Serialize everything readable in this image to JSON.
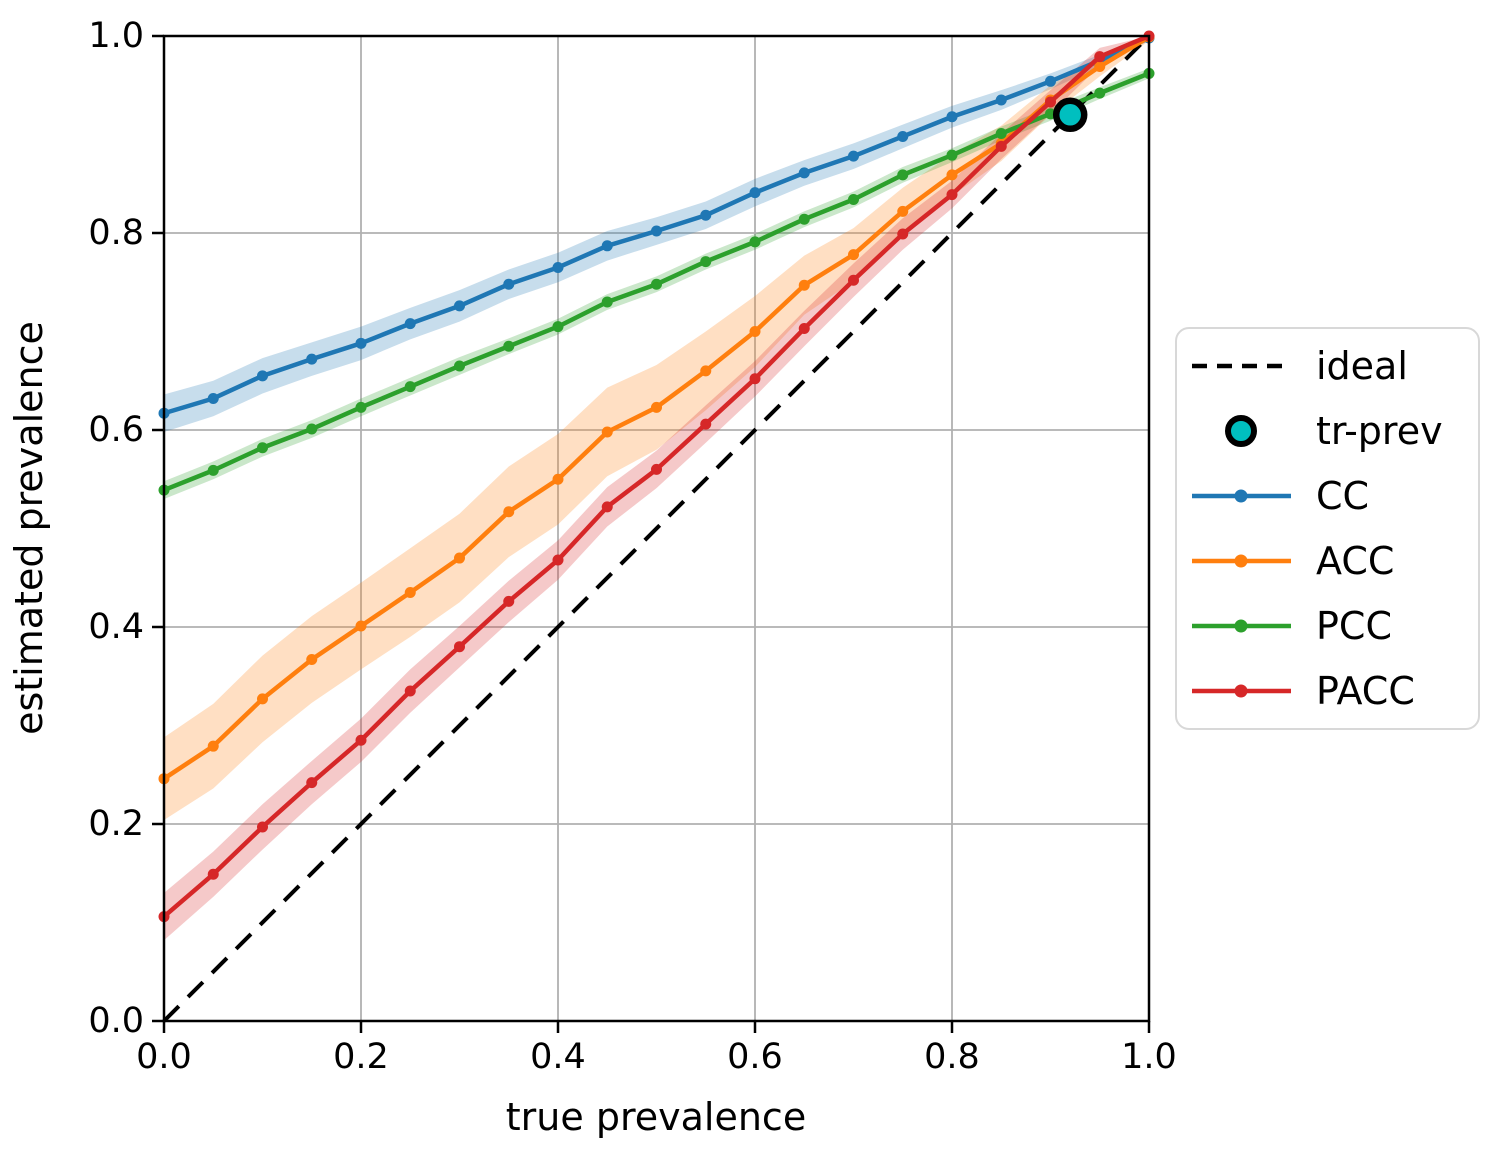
{
  "figure": {
    "xlabel": "true prevalence",
    "ylabel": "estimated prevalence",
    "x_tick_labels": [
      "0.0",
      "0.2",
      "0.4",
      "0.6",
      "0.8",
      "1.0"
    ],
    "y_tick_labels": [
      "0.0",
      "0.2",
      "0.4",
      "0.6",
      "0.8",
      "1.0"
    ]
  },
  "legend": {
    "items": [
      {
        "label": "ideal",
        "type": "dashed",
        "color": "#000000"
      },
      {
        "label": "tr-prev",
        "type": "marker",
        "color": "#00bfbf",
        "edge_color": "#000000"
      },
      {
        "label": "CC",
        "type": "line",
        "color": "#1f77b4"
      },
      {
        "label": "ACC",
        "type": "line",
        "color": "#ff7f0e"
      },
      {
        "label": "PCC",
        "type": "line",
        "color": "#2ca02c"
      },
      {
        "label": "PACC",
        "type": "line",
        "color": "#d62728"
      }
    ]
  },
  "chart_data": {
    "type": "line",
    "title": "",
    "xlabel": "true prevalence",
    "ylabel": "estimated prevalence",
    "xlim": [
      0,
      1
    ],
    "ylim": [
      0,
      1
    ],
    "grid": true,
    "grid_color": "#b0b0b0",
    "legend_position": "center right, outside axes",
    "x": [
      0.0,
      0.05,
      0.1,
      0.15,
      0.2,
      0.25,
      0.3,
      0.35,
      0.4,
      0.45,
      0.5,
      0.55,
      0.6,
      0.65,
      0.7,
      0.75,
      0.8,
      0.85,
      0.9,
      0.95,
      1.0
    ],
    "series": [
      {
        "name": "CC",
        "color": "#1f77b4",
        "values": [
          0.617,
          0.632,
          0.655,
          0.672,
          0.688,
          0.708,
          0.726,
          0.748,
          0.765,
          0.787,
          0.802,
          0.818,
          0.841,
          0.861,
          0.878,
          0.898,
          0.918,
          0.935,
          0.954,
          0.975,
          0.998
        ],
        "band_halfwidth": [
          0.019,
          0.018,
          0.018,
          0.017,
          0.017,
          0.016,
          0.016,
          0.015,
          0.015,
          0.015,
          0.014,
          0.014,
          0.014,
          0.013,
          0.013,
          0.012,
          0.011,
          0.01,
          0.008,
          0.006,
          0.003
        ]
      },
      {
        "name": "ACC",
        "color": "#ff7f0e",
        "values": [
          0.246,
          0.279,
          0.327,
          0.367,
          0.401,
          0.435,
          0.47,
          0.517,
          0.55,
          0.598,
          0.623,
          0.66,
          0.7,
          0.747,
          0.778,
          0.822,
          0.859,
          0.891,
          0.935,
          0.969,
          0.999
        ],
        "band_halfwidth": [
          0.042,
          0.043,
          0.044,
          0.044,
          0.044,
          0.045,
          0.045,
          0.046,
          0.046,
          0.045,
          0.043,
          0.04,
          0.036,
          0.03,
          0.027,
          0.024,
          0.021,
          0.018,
          0.015,
          0.01,
          0.004
        ]
      },
      {
        "name": "PCC",
        "color": "#2ca02c",
        "values": [
          0.539,
          0.559,
          0.582,
          0.601,
          0.623,
          0.644,
          0.665,
          0.685,
          0.705,
          0.73,
          0.748,
          0.771,
          0.791,
          0.814,
          0.834,
          0.859,
          0.879,
          0.901,
          0.921,
          0.942,
          0.962
        ],
        "band_halfwidth": [
          0.009,
          0.009,
          0.009,
          0.009,
          0.009,
          0.009,
          0.009,
          0.008,
          0.008,
          0.008,
          0.008,
          0.008,
          0.008,
          0.008,
          0.008,
          0.008,
          0.007,
          0.007,
          0.007,
          0.006,
          0.005
        ]
      },
      {
        "name": "PACC",
        "color": "#d62728",
        "values": [
          0.106,
          0.149,
          0.197,
          0.242,
          0.285,
          0.335,
          0.38,
          0.426,
          0.468,
          0.522,
          0.56,
          0.606,
          0.652,
          0.703,
          0.752,
          0.799,
          0.839,
          0.888,
          0.933,
          0.979,
          1.0
        ],
        "band_halfwidth": [
          0.024,
          0.023,
          0.023,
          0.022,
          0.022,
          0.022,
          0.021,
          0.021,
          0.02,
          0.02,
          0.019,
          0.019,
          0.018,
          0.018,
          0.017,
          0.016,
          0.014,
          0.013,
          0.012,
          0.009,
          0.004
        ]
      }
    ],
    "band_opacity": 0.25,
    "ideal_line": {
      "label": "ideal",
      "x": [
        0,
        1
      ],
      "y": [
        0,
        1
      ],
      "style": "dashed",
      "color": "#000000"
    },
    "tr_prev": {
      "label": "tr-prev",
      "x": 0.92,
      "y": 0.92,
      "color": "#00bfbf",
      "edge_color": "#000000"
    }
  }
}
